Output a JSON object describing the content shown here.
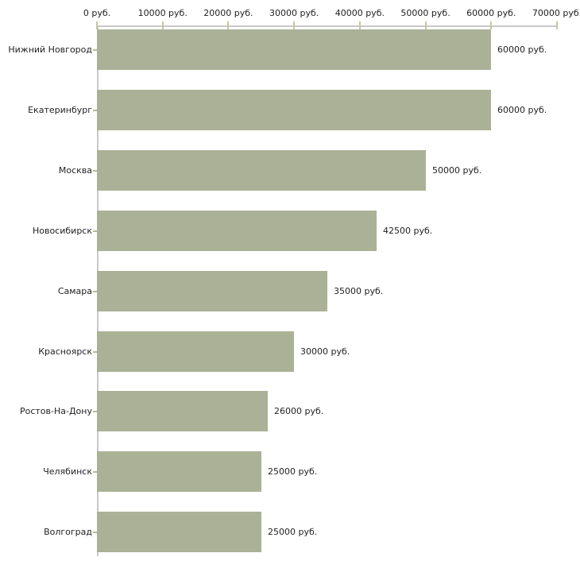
{
  "chart_data": {
    "type": "bar",
    "orientation": "horizontal",
    "title": "",
    "xlabel": "",
    "ylabel": "",
    "xlim": [
      0,
      70000
    ],
    "x_ticks": [
      0,
      10000,
      20000,
      30000,
      40000,
      50000,
      60000,
      70000
    ],
    "x_tick_labels": [
      "0 руб.",
      "10000 руб.",
      "20000 руб.",
      "30000 руб.",
      "40000 руб.",
      "50000 руб.",
      "60000 руб.",
      "70000 руб."
    ],
    "categories": [
      "Нижний Новгород",
      "Екатеринбург",
      "Москва",
      "Новосибирск",
      "Самара",
      "Красноярск",
      "Ростов-На-Дону",
      "Челябинск",
      "Волгоград"
    ],
    "values": [
      60000,
      60000,
      50000,
      42500,
      35000,
      30000,
      26000,
      25000,
      25000
    ],
    "value_labels": [
      "60000 руб.",
      "60000 руб.",
      "50000 руб.",
      "42500 руб.",
      "35000 руб.",
      "30000 руб.",
      "26000 руб.",
      "25000 руб.",
      "25000 руб."
    ],
    "grid": false,
    "legend": false,
    "colors": {
      "bar": "#abb196",
      "axis_line": "#c9c9c9",
      "tick_mark": "#c6c6a3",
      "category_tick": "#b9b99a",
      "text": "#1f1f1f",
      "background": "#ffffff"
    }
  }
}
